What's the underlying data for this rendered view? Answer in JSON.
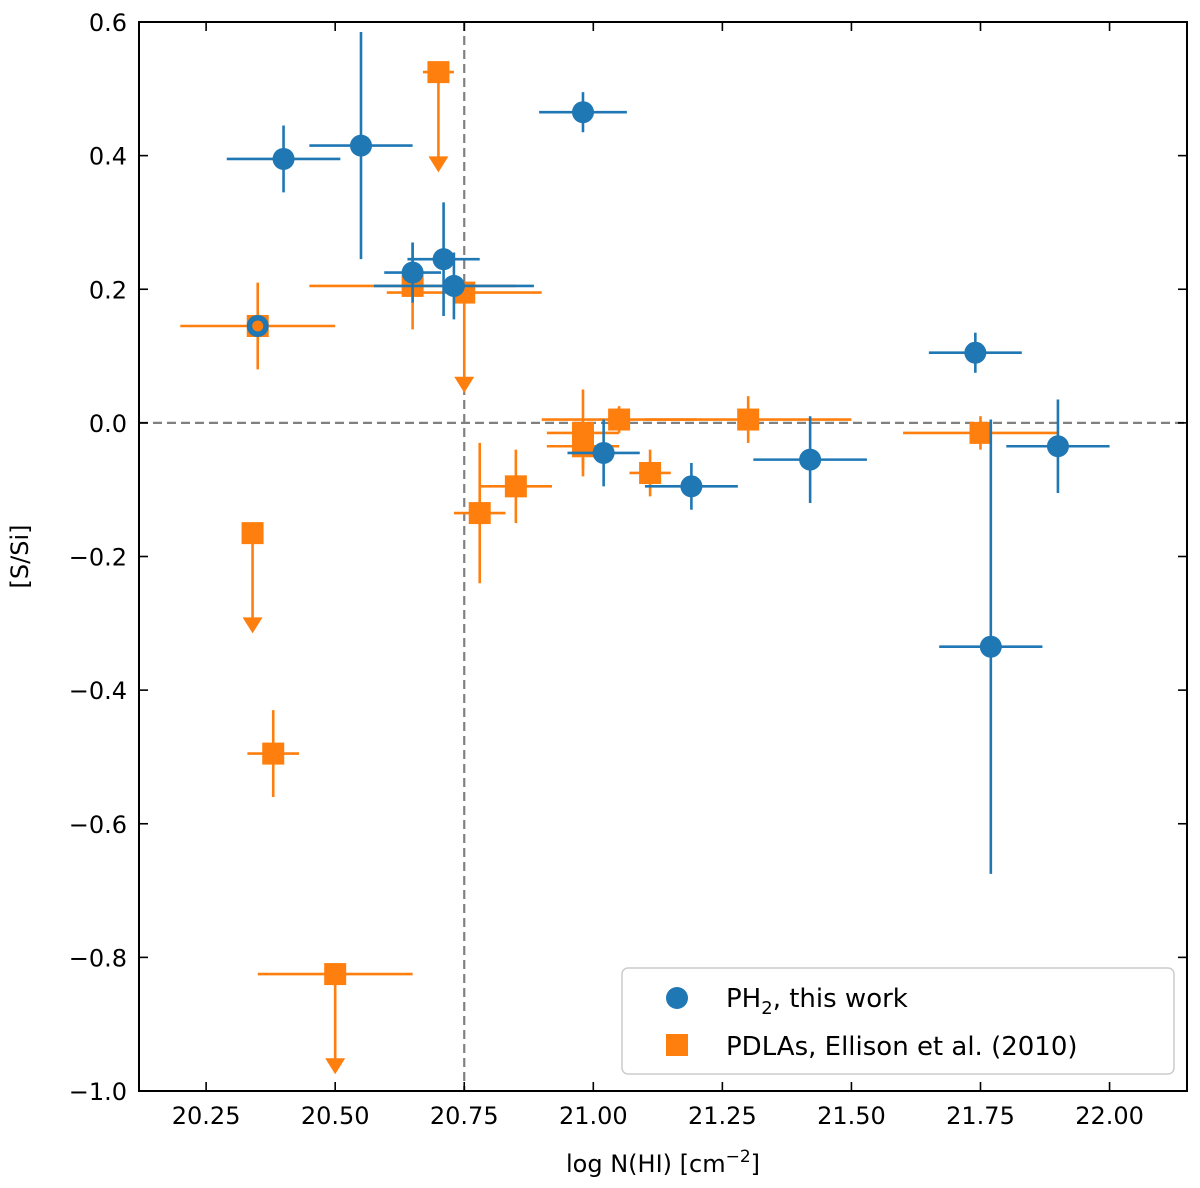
{
  "chart_data": {
    "type": "scatter",
    "xlabel": "log N(HI) [cm",
    "xlabel_sup": "−2",
    "xlabel_close": "]",
    "ylabel": "[S/Si]",
    "xlim": [
      20.12,
      22.15
    ],
    "ylim": [
      -1.0,
      0.6
    ],
    "xticks": [
      20.25,
      20.5,
      20.75,
      21.0,
      21.25,
      21.5,
      21.75,
      22.0
    ],
    "xtick_labels": [
      "20.25",
      "20.50",
      "20.75",
      "21.00",
      "21.25",
      "21.50",
      "21.75",
      "22.00"
    ],
    "yticks": [
      -1.0,
      -0.8,
      -0.6,
      -0.4,
      -0.2,
      0.0,
      0.2,
      0.4,
      0.6
    ],
    "ytick_labels": [
      "−1.0",
      "−0.8",
      "−0.6",
      "−0.4",
      "−0.2",
      "0.0",
      "0.2",
      "0.4",
      "0.6"
    ],
    "reference_lines": {
      "x": 20.75,
      "y": 0.0
    },
    "legend_position": "lower-right",
    "series": [
      {
        "name": "PDLAs, Ellison et al. (2010)",
        "legend_main": "PDLAs, Ellison et al. (2010)",
        "marker": "square",
        "color": "#ff7f0e",
        "points": [
          {
            "x": 20.35,
            "y": 0.145,
            "xerr": 0.15,
            "yerr": 0.065
          },
          {
            "x": 20.7,
            "y": 0.525,
            "xerr": 0.03,
            "yerr": 0,
            "upper_limit": true
          },
          {
            "x": 20.65,
            "y": 0.205,
            "xerr": 0.2,
            "yerr": 0.065
          },
          {
            "x": 20.75,
            "y": 0.195,
            "xerr": 0.15,
            "yerr": 0,
            "upper_limit": true
          },
          {
            "x": 20.34,
            "y": -0.165,
            "xerr": 0,
            "yerr": 0,
            "upper_limit": true
          },
          {
            "x": 20.38,
            "y": -0.495,
            "xerr": 0.05,
            "yerr": 0.065
          },
          {
            "x": 20.5,
            "y": -0.825,
            "xerr": 0.15,
            "yerr": 0,
            "upper_limit": true
          },
          {
            "x": 20.78,
            "y": -0.135,
            "xerr": 0.05,
            "yerr": 0.105
          },
          {
            "x": 20.85,
            "y": -0.095,
            "xerr": 0.07,
            "yerr": 0.055
          },
          {
            "x": 20.98,
            "y": -0.015,
            "xerr": 0.07,
            "yerr": 0.065
          },
          {
            "x": 20.98,
            "y": -0.035,
            "xerr": 0.07,
            "yerr": 0.035
          },
          {
            "x": 21.05,
            "y": 0.005,
            "xerr": 0.15,
            "yerr": 0.02
          },
          {
            "x": 21.11,
            "y": -0.075,
            "xerr": 0.04,
            "yerr": 0.035
          },
          {
            "x": 21.3,
            "y": 0.005,
            "xerr": 0.2,
            "yerr": 0.035
          },
          {
            "x": 21.75,
            "y": -0.015,
            "xerr": 0.15,
            "yerr": 0.025
          }
        ]
      },
      {
        "name": "PH2, this work",
        "legend_main": "PH",
        "legend_sub": "2",
        "legend_rest": ", this work",
        "marker": "circle",
        "color": "#1f77b4",
        "points": [
          {
            "x": 20.35,
            "y": 0.145,
            "xerr": 0,
            "yerr": 0
          },
          {
            "x": 20.4,
            "y": 0.395,
            "xerr": 0.11,
            "yerr": 0.05
          },
          {
            "x": 20.55,
            "y": 0.415,
            "xerr": 0.1,
            "yerr": 0.17
          },
          {
            "x": 20.65,
            "y": 0.225,
            "xerr": 0.055,
            "yerr": 0.045
          },
          {
            "x": 20.71,
            "y": 0.245,
            "xerr": 0.07,
            "yerr": 0.085
          },
          {
            "x": 20.73,
            "y": 0.205,
            "xerr": 0.155,
            "yerr": 0.05
          },
          {
            "x": 20.98,
            "y": 0.465,
            "xerr": 0.085,
            "yerr": 0.03
          },
          {
            "x": 21.02,
            "y": -0.045,
            "xerr": 0.07,
            "yerr": 0.05
          },
          {
            "x": 21.19,
            "y": -0.095,
            "xerr": 0.09,
            "yerr": 0.035
          },
          {
            "x": 21.42,
            "y": -0.055,
            "xerr": 0.11,
            "yerr": 0.065
          },
          {
            "x": 21.74,
            "y": 0.105,
            "xerr": 0.09,
            "yerr": 0.03
          },
          {
            "x": 21.77,
            "y": -0.335,
            "xerr": 0.1,
            "yerr": 0.34
          },
          {
            "x": 21.9,
            "y": -0.035,
            "xerr": 0.1,
            "yerr": 0.07
          }
        ]
      }
    ]
  }
}
